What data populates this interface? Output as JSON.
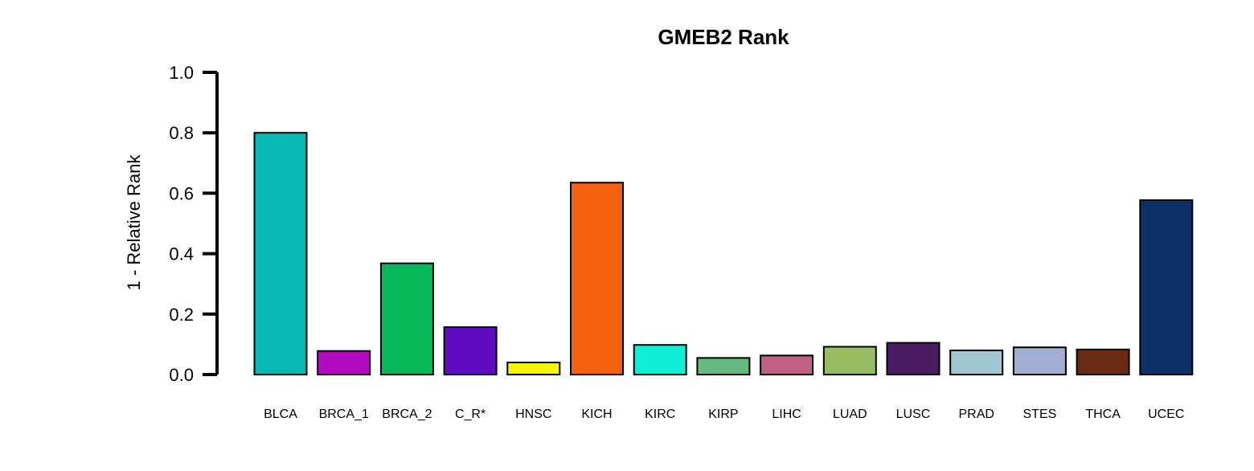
{
  "chart_data": {
    "type": "bar",
    "title": "GMEB2 Rank",
    "xlabel": "",
    "ylabel": "1 - Relative Rank",
    "ylim": [
      0,
      1
    ],
    "yticks": [
      "0.0",
      "0.2",
      "0.4",
      "0.6",
      "0.8",
      "1.0"
    ],
    "grid": false,
    "categories": [
      "BLCA",
      "BRCA_1",
      "BRCA_2",
      "C_R*",
      "HNSC",
      "KICH",
      "KIRC",
      "KIRP",
      "LIHC",
      "LUAD",
      "LUSC",
      "PRAD",
      "STES",
      "THCA",
      "UCEC"
    ],
    "values": [
      0.8,
      0.078,
      0.368,
      0.157,
      0.04,
      0.635,
      0.098,
      0.055,
      0.063,
      0.092,
      0.105,
      0.08,
      0.09,
      0.083,
      0.577
    ],
    "colors": [
      "#08B8B4",
      "#B20CBE",
      "#08B85A",
      "#5E0CBE",
      "#F4F40E",
      "#F26010",
      "#10EED6",
      "#66BA82",
      "#C06084",
      "#98BE62",
      "#4A1C62",
      "#A0C6D2",
      "#A0AED2",
      "#6A2A12",
      "#0E3066"
    ]
  }
}
